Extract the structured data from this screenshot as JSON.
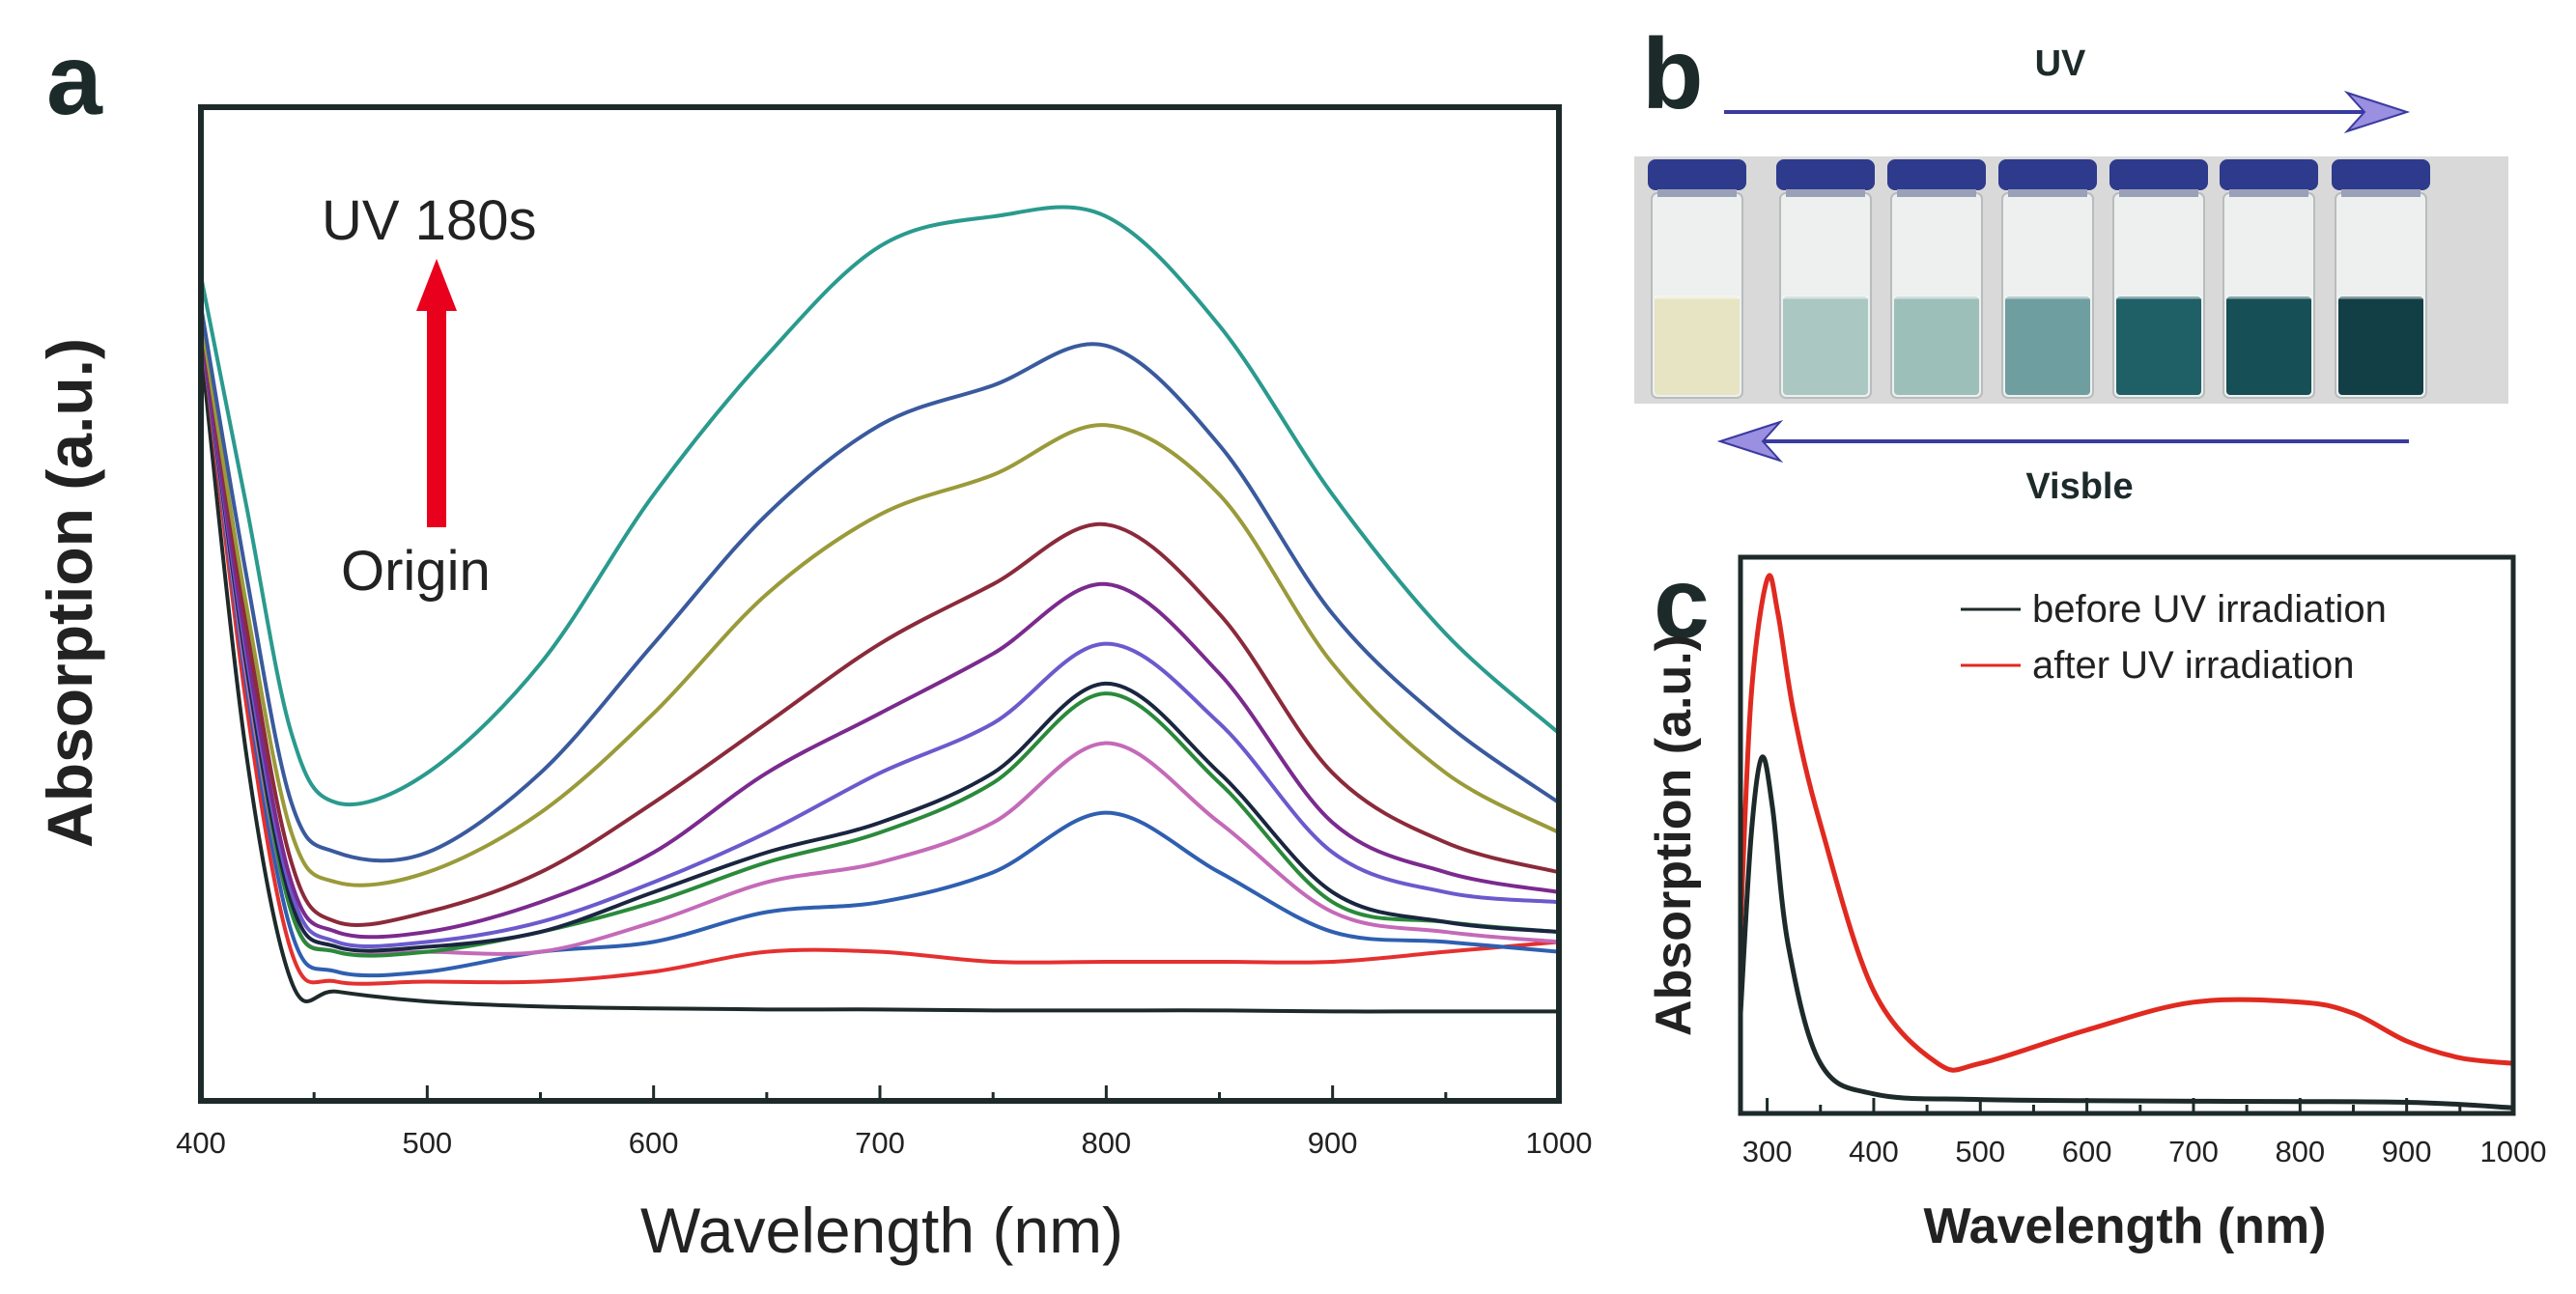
{
  "panels": {
    "a": "a",
    "b": "b",
    "c": "c"
  },
  "chart_data": [
    {
      "type": "line",
      "panel": "a",
      "xlabel": "Wavelength (nm)",
      "ylabel": "Absorption (a.u.)",
      "xlim": [
        400,
        1000
      ],
      "ylim": [
        0,
        1
      ],
      "xticks": [
        400,
        500,
        600,
        700,
        800,
        900,
        1000
      ],
      "annotations": {
        "top": "UV 180s",
        "bottom": "Origin",
        "arrow_color": "#e8001c"
      },
      "x": [
        400,
        420,
        440,
        460,
        500,
        550,
        600,
        650,
        700,
        750,
        800,
        850,
        900,
        950,
        1000
      ],
      "series": [
        {
          "color": "#1e2a2a",
          "values": [
            0.76,
            0.35,
            0.12,
            0.11,
            0.1,
            0.095,
            0.093,
            0.092,
            0.092,
            0.091,
            0.091,
            0.091,
            0.09,
            0.09,
            0.09
          ]
        },
        {
          "color": "#e53030",
          "values": [
            0.78,
            0.4,
            0.15,
            0.12,
            0.12,
            0.12,
            0.13,
            0.15,
            0.15,
            0.14,
            0.14,
            0.14,
            0.14,
            0.15,
            0.16
          ]
        },
        {
          "color": "#2f5fb0",
          "values": [
            0.78,
            0.42,
            0.17,
            0.13,
            0.13,
            0.15,
            0.16,
            0.19,
            0.2,
            0.23,
            0.29,
            0.23,
            0.17,
            0.16,
            0.15
          ]
        },
        {
          "color": "#c46ab8",
          "values": [
            0.78,
            0.43,
            0.19,
            0.15,
            0.15,
            0.15,
            0.18,
            0.22,
            0.24,
            0.28,
            0.36,
            0.28,
            0.19,
            0.17,
            0.16
          ]
        },
        {
          "color": "#2a8a3a",
          "values": [
            0.78,
            0.44,
            0.19,
            0.15,
            0.15,
            0.17,
            0.2,
            0.24,
            0.27,
            0.32,
            0.41,
            0.32,
            0.2,
            0.18,
            0.17
          ]
        },
        {
          "color": "#1a2540",
          "values": [
            0.78,
            0.44,
            0.2,
            0.155,
            0.155,
            0.17,
            0.21,
            0.25,
            0.28,
            0.33,
            0.42,
            0.33,
            0.21,
            0.18,
            0.17
          ]
        },
        {
          "color": "#6a5acd",
          "values": [
            0.78,
            0.45,
            0.21,
            0.16,
            0.16,
            0.18,
            0.22,
            0.27,
            0.33,
            0.38,
            0.46,
            0.38,
            0.25,
            0.21,
            0.2
          ]
        },
        {
          "color": "#7b2a8e",
          "values": [
            0.78,
            0.46,
            0.22,
            0.17,
            0.17,
            0.2,
            0.25,
            0.33,
            0.39,
            0.45,
            0.52,
            0.43,
            0.28,
            0.23,
            0.21
          ]
        },
        {
          "color": "#8b2a3a",
          "values": [
            0.79,
            0.48,
            0.24,
            0.18,
            0.19,
            0.23,
            0.3,
            0.38,
            0.46,
            0.52,
            0.58,
            0.49,
            0.33,
            0.26,
            0.23
          ]
        },
        {
          "color": "#9a9a3a",
          "values": [
            0.79,
            0.5,
            0.27,
            0.22,
            0.23,
            0.29,
            0.39,
            0.51,
            0.59,
            0.63,
            0.68,
            0.61,
            0.44,
            0.33,
            0.27
          ]
        },
        {
          "color": "#3a5a9e",
          "values": [
            0.8,
            0.53,
            0.3,
            0.25,
            0.25,
            0.33,
            0.46,
            0.59,
            0.68,
            0.72,
            0.76,
            0.66,
            0.49,
            0.38,
            0.3
          ]
        },
        {
          "color": "#2a9a8e",
          "values": [
            0.83,
            0.6,
            0.37,
            0.3,
            0.33,
            0.44,
            0.61,
            0.75,
            0.86,
            0.89,
            0.89,
            0.78,
            0.61,
            0.47,
            0.37
          ]
        }
      ]
    },
    {
      "type": "line",
      "panel": "c",
      "xlabel": "Wavelength (nm)",
      "ylabel": "Absorption (a.u.)",
      "xlim": [
        275,
        1000
      ],
      "ylim": [
        0,
        1
      ],
      "xticks": [
        300,
        400,
        500,
        600,
        700,
        800,
        900,
        1000
      ],
      "legend_position": "top-right",
      "series": [
        {
          "name": "before UV irradiation",
          "color": "#1e2a2a",
          "x": [
            275,
            285,
            295,
            305,
            320,
            350,
            400,
            500,
            700,
            900,
            1000
          ],
          "values": [
            0.18,
            0.5,
            0.64,
            0.55,
            0.3,
            0.09,
            0.035,
            0.025,
            0.022,
            0.02,
            0.01
          ]
        },
        {
          "name": "after UV irradiation",
          "color": "#e02a20",
          "x": [
            275,
            285,
            300,
            310,
            325,
            350,
            400,
            460,
            500,
            600,
            700,
            800,
            850,
            900,
            950,
            1000
          ],
          "values": [
            0.33,
            0.75,
            0.96,
            0.9,
            0.72,
            0.52,
            0.22,
            0.09,
            0.09,
            0.15,
            0.2,
            0.2,
            0.18,
            0.13,
            0.1,
            0.09
          ]
        }
      ]
    }
  ],
  "photo": {
    "uv_label": "UV",
    "visible_label": "Visble",
    "arrow_line_color": "#3a3aa0",
    "arrow_head_color": "#9a8fe0",
    "cap_color": "#2e3a8c",
    "vial_liquid_colors": [
      "#e6e4c2",
      "#aac7c1",
      "#9dbfb9",
      "#6f9ea0",
      "#1f5f66",
      "#164f55",
      "#123f45"
    ]
  }
}
